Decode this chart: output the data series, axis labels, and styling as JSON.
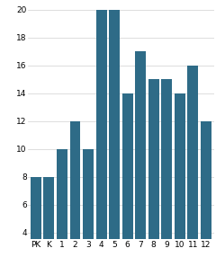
{
  "categories": [
    "PK",
    "K",
    "1",
    "2",
    "3",
    "4",
    "5",
    "6",
    "7",
    "8",
    "9",
    "10",
    "11",
    "12"
  ],
  "values": [
    8,
    8,
    10,
    12,
    10,
    20,
    20,
    14,
    17,
    15,
    15,
    14,
    16,
    12
  ],
  "bar_color": "#2e6b87",
  "ylim": [
    3.5,
    20.5
  ],
  "yticks": [
    4,
    6,
    8,
    10,
    12,
    14,
    16,
    18,
    20
  ],
  "background_color": "#ffffff",
  "tick_fontsize": 6.5,
  "bar_width": 0.82
}
